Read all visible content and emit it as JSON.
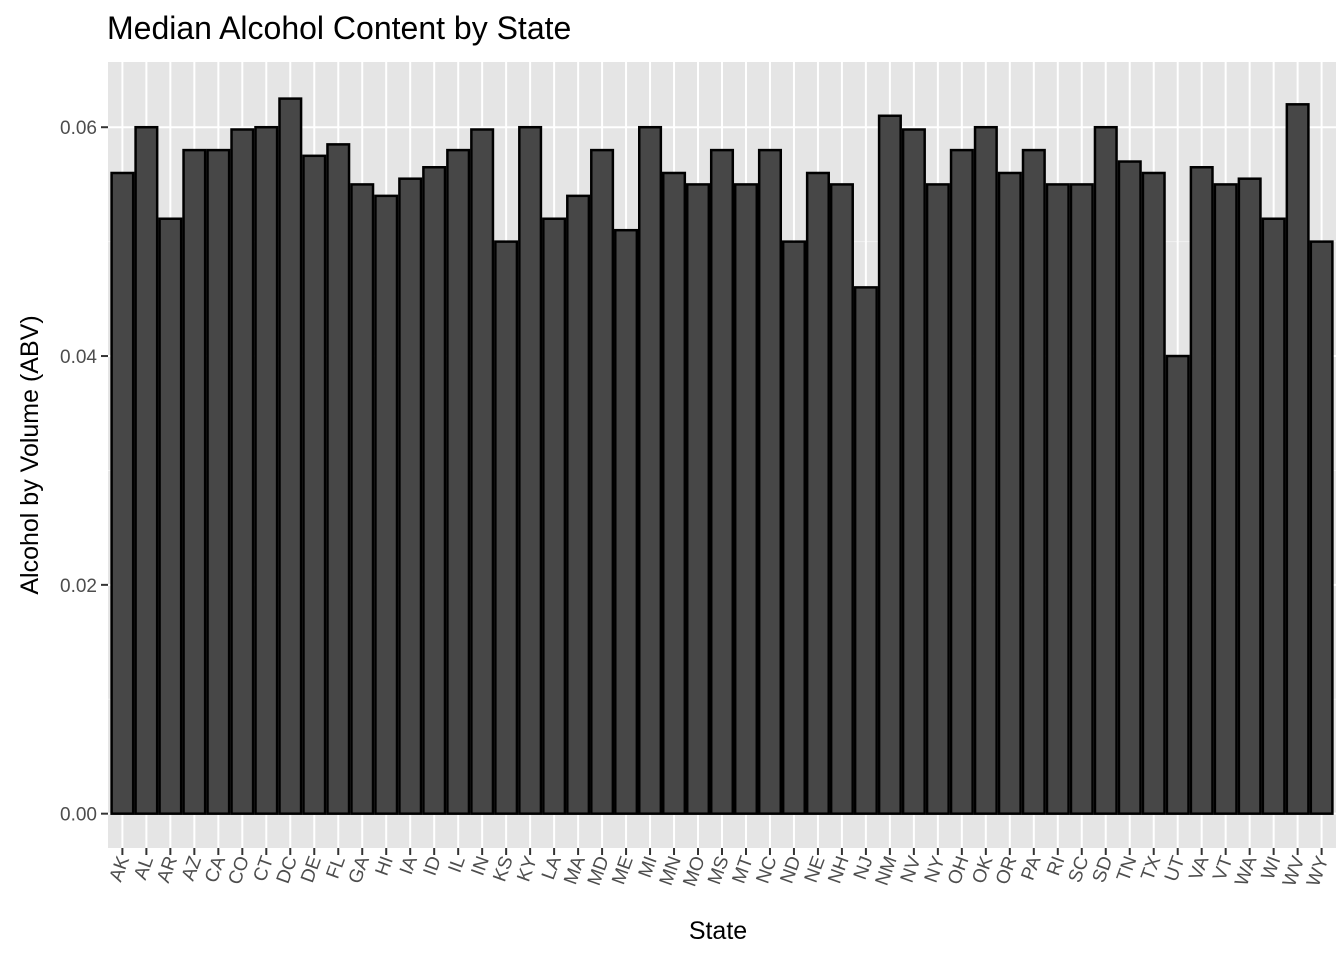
{
  "chart_data": {
    "type": "bar",
    "title": "Median Alcohol Content by State",
    "xlabel": "State",
    "ylabel": "Alcohol by Volume (ABV)",
    "ylim": [
      -0.003,
      0.0657
    ],
    "yticks": [
      "0.00",
      "0.02",
      "0.04",
      "0.06"
    ],
    "ytick_values": [
      0.0,
      0.02,
      0.04,
      0.06
    ],
    "grid": true,
    "bar_fill": "#474747",
    "bar_stroke": "#000000",
    "panel_background": "#e5e5e5",
    "categories": [
      "AK",
      "AL",
      "AR",
      "AZ",
      "CA",
      "CO",
      "CT",
      "DC",
      "DE",
      "FL",
      "GA",
      "HI",
      "IA",
      "ID",
      "IL",
      "IN",
      "KS",
      "KY",
      "LA",
      "MA",
      "MD",
      "ME",
      "MI",
      "MN",
      "MO",
      "MS",
      "MT",
      "NC",
      "ND",
      "NE",
      "NH",
      "NJ",
      "NM",
      "NV",
      "NY",
      "OH",
      "OK",
      "OR",
      "PA",
      "RI",
      "SC",
      "SD",
      "TN",
      "TX",
      "UT",
      "VA",
      "VT",
      "WA",
      "WI",
      "WV",
      "WY"
    ],
    "values": [
      0.056,
      0.06,
      0.052,
      0.058,
      0.058,
      0.0598,
      0.06,
      0.0625,
      0.0575,
      0.0585,
      0.055,
      0.054,
      0.0555,
      0.0565,
      0.058,
      0.0598,
      0.05,
      0.06,
      0.052,
      0.054,
      0.058,
      0.051,
      0.06,
      0.056,
      0.055,
      0.058,
      0.055,
      0.058,
      0.05,
      0.056,
      0.055,
      0.046,
      0.061,
      0.0598,
      0.055,
      0.058,
      0.06,
      0.056,
      0.058,
      0.055,
      0.055,
      0.06,
      0.057,
      0.056,
      0.04,
      0.0565,
      0.055,
      0.0555,
      0.052,
      0.062,
      0.05
    ]
  }
}
